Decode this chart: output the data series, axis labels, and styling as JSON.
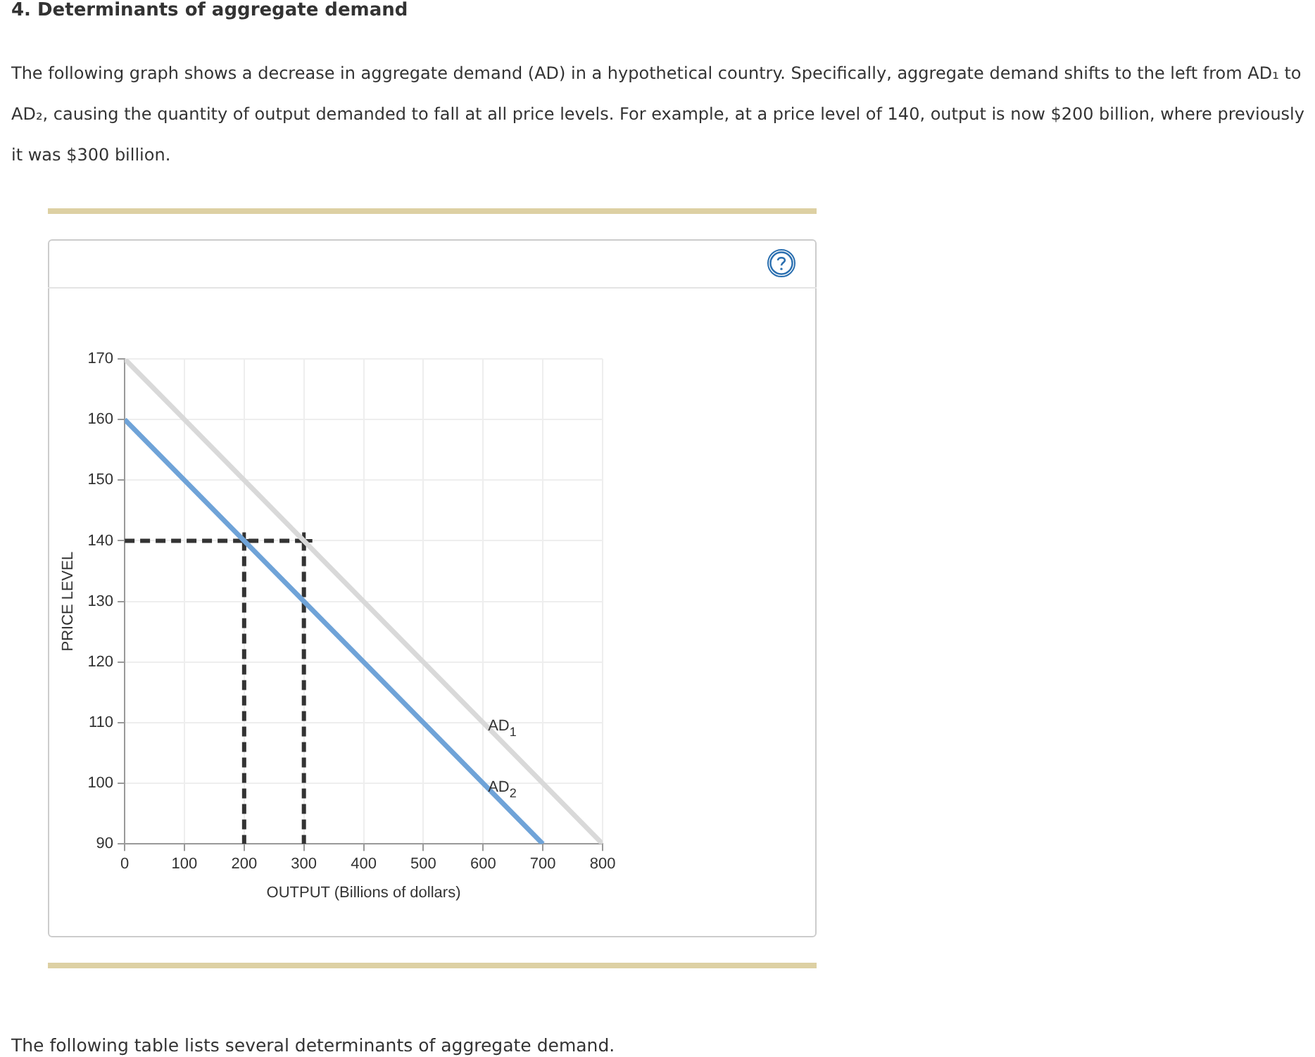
{
  "chart_data": {
    "type": "line",
    "title": "4. Determinants of aggregate demand",
    "subtitle": "The following graph shows a decrease in aggregate demand (AD) in a hypothetical country. Specifically, aggregate demand shifts to the left from AD₁ to AD₂, causing the quantity of output demanded to fall at all price levels. For example, at a price level of 140, output is now $200 billion, where previously it was $300 billion.",
    "xlabel": "OUTPUT (Billions of dollars)",
    "ylabel": "PRICE LEVEL",
    "annotations": [
      "The following table lists several determinants of aggregate demand."
    ],
    "xlim": [
      0,
      800
    ],
    "xticks": [
      0,
      100,
      200,
      300,
      400,
      500,
      600,
      700,
      800
    ],
    "ylim": [
      90,
      170
    ],
    "yticks": [
      90,
      100,
      110,
      120,
      130,
      140,
      150,
      160,
      170
    ],
    "grid": true,
    "legend": false,
    "marker": "none",
    "series": [
      {
        "name": "AD$_{1}$",
        "color": "#d9d9d9",
        "x": [
          0,
          800
        ],
        "values": [
          170,
          90
        ]
      },
      {
        "name": "AD$_{2}$",
        "color": "#6fa3d8",
        "x": [
          0,
          700
        ],
        "values": [
          160,
          90
        ]
      },
      {
        "color": "#333333",
        "x": [
          0,
          300
        ],
        "values": [
          140,
          140
        ],
        "line_style": "dashed"
      },
      {
        "color": "#333333",
        "x": [
          200,
          200
        ],
        "values": [
          140,
          90
        ],
        "line_style": "dashed"
      },
      {
        "color": "#333333",
        "x": [
          300,
          300
        ],
        "values": [
          140,
          90
        ],
        "line_style": "dashed"
      },
      {
        "type": "scatter",
        "color": "#333333",
        "x": [
          200,
          300
        ],
        "values": [
          140,
          140
        ],
        "marker": "cross"
      }
    ]
  }
}
